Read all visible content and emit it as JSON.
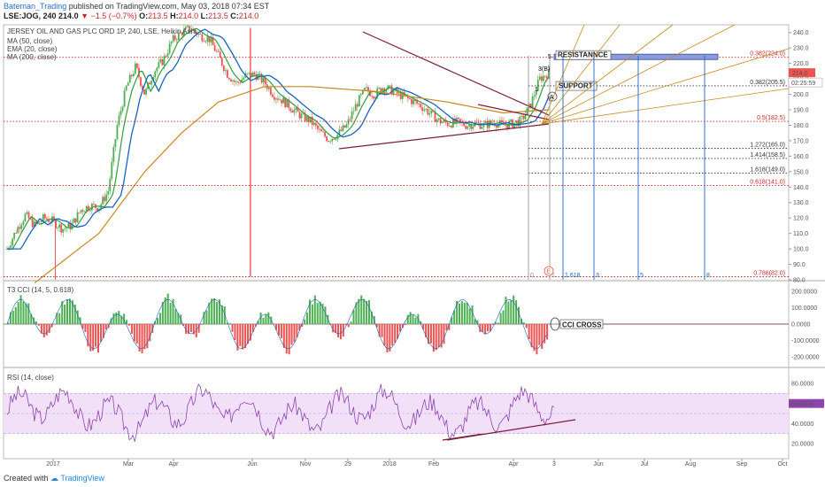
{
  "header": {
    "author": "Bateman_Trading",
    "published": "published on TradingView.com, May 03, 2018 07:34 EST",
    "symbol": "LSE:JOG, 240",
    "last": "214.0",
    "change": "−1.5 (−0.7%)",
    "ohlc_o": "O:",
    "ohlc_o_val": "213.5",
    "ohlc_h": "H:",
    "ohlc_h_val": "214.0",
    "ohlc_l": "L:",
    "ohlc_l_val": "213.5",
    "ohlc_c": "C:",
    "ohlc_c_val": "214.0"
  },
  "legend": {
    "title": "JERSEY OIL AND GAS PLC ORD 1P, 240, LSE, Heikin Ashi",
    "ma50": "MA (50, close)",
    "ema20": "EMA (20, close)",
    "ma200": "MA (200, close)"
  },
  "footer": {
    "created": "Created with",
    "brand": "TradingView"
  },
  "colors": {
    "bull": "#4caf50",
    "bear": "#ef5350",
    "ma50": "#1565c0",
    "ema20": "#2e9e40",
    "ma200": "#c68a1c",
    "trend": "#7b1e3c",
    "fib": "#c62828",
    "vline": "#1e62c8",
    "rsi": "#8e44ad",
    "rsi_band": "#f1e0f7"
  },
  "chart_data": [
    {
      "type": "candlestick",
      "name": "price",
      "ylim": [
        80,
        245
      ],
      "y_ticks": [
        "240.0",
        "230.0",
        "220.0",
        "210.0",
        "200.0",
        "190.0",
        "180.0",
        "170.0",
        "160.0",
        "150.0",
        "140.0",
        "130.0",
        "120.0",
        "110.0",
        "100.0",
        "90.0",
        "80.0"
      ],
      "last_price": "214.0",
      "time_label": "02:25:59",
      "path": [
        [
          0,
          100
        ],
        [
          2,
          112
        ],
        [
          4,
          122
        ],
        [
          6,
          115
        ],
        [
          8,
          120
        ],
        [
          10,
          118
        ],
        [
          12,
          113
        ],
        [
          14,
          115
        ],
        [
          16,
          125
        ],
        [
          18,
          128
        ],
        [
          20,
          127
        ],
        [
          22,
          137
        ],
        [
          24,
          180
        ],
        [
          26,
          205
        ],
        [
          28,
          218
        ],
        [
          30,
          200
        ],
        [
          32,
          215
        ],
        [
          34,
          222
        ],
        [
          36,
          235
        ],
        [
          38,
          240
        ],
        [
          40,
          243
        ],
        [
          42,
          238
        ],
        [
          44,
          236
        ],
        [
          46,
          225
        ],
        [
          48,
          213
        ],
        [
          50,
          207
        ],
        [
          52,
          212
        ],
        [
          54,
          213
        ],
        [
          56,
          208
        ],
        [
          58,
          200
        ],
        [
          60,
          196
        ],
        [
          62,
          191
        ],
        [
          64,
          186
        ],
        [
          66,
          183
        ],
        [
          68,
          176
        ],
        [
          70,
          171
        ],
        [
          72,
          174
        ],
        [
          74,
          180
        ],
        [
          76,
          193
        ],
        [
          78,
          203
        ],
        [
          80,
          200
        ],
        [
          82,
          205
        ],
        [
          84,
          202
        ],
        [
          86,
          199
        ],
        [
          88,
          196
        ],
        [
          90,
          193
        ],
        [
          92,
          188
        ],
        [
          94,
          183
        ],
        [
          96,
          181
        ],
        [
          98,
          182
        ],
        [
          100,
          180
        ],
        [
          102,
          181
        ],
        [
          104,
          180
        ],
        [
          106,
          182
        ],
        [
          108,
          180
        ],
        [
          110,
          181
        ],
        [
          112,
          183
        ],
        [
          114,
          193
        ],
        [
          116,
          210
        ],
        [
          118,
          214
        ]
      ],
      "fib_levels": [
        {
          "price": 224.0,
          "label": "0.382(224.0)"
        },
        {
          "price": 205.5,
          "label": "0.382(205.5)"
        },
        {
          "price": 182.5,
          "label": "0.5(182.5)"
        },
        {
          "price": 165.0,
          "label": "1.272(165.0)"
        },
        {
          "price": 158.5,
          "label": "1.414(158.5)"
        },
        {
          "price": 149.0,
          "label": "1.618(149.0)"
        },
        {
          "price": 141.0,
          "label": "0.618(141.0)"
        },
        {
          "price": 82.0,
          "label": "0.786(82.0)"
        }
      ],
      "annotations": {
        "resistance": "RESISTANNCE",
        "support": "SUPPORT",
        "wave5": "5",
        "wave3": "3(B)",
        "wave1": "1",
        "wave_a": "A",
        "e_marker": "E"
      },
      "time_fib_labels": [
        "0",
        "1",
        "1.618",
        "3",
        "5",
        "8"
      ]
    },
    {
      "type": "bar",
      "name": "T3 CCI (14, 5, 0.618)",
      "ylim": [
        -260,
        260
      ],
      "y_ticks": [
        "200.0000",
        "100.0000",
        "0.0000",
        "-100.0000",
        "-200.0000"
      ],
      "annotation": "CCI CROSS"
    },
    {
      "type": "line",
      "name": "RSI (14, close)",
      "ylim": [
        5,
        95
      ],
      "y_ticks": [
        "80.0000",
        "60.0000",
        "40.0000",
        "20.0000"
      ],
      "band": [
        30,
        70
      ],
      "last": "60.0000"
    }
  ],
  "x_axis": {
    "labels": [
      "2017",
      "Mar",
      "Apr",
      "Jun",
      "Nov",
      "29",
      "2018",
      "Feb",
      "Apr",
      "3",
      "Jun",
      "Jul",
      "Aug",
      "Sep",
      "Oct"
    ]
  }
}
